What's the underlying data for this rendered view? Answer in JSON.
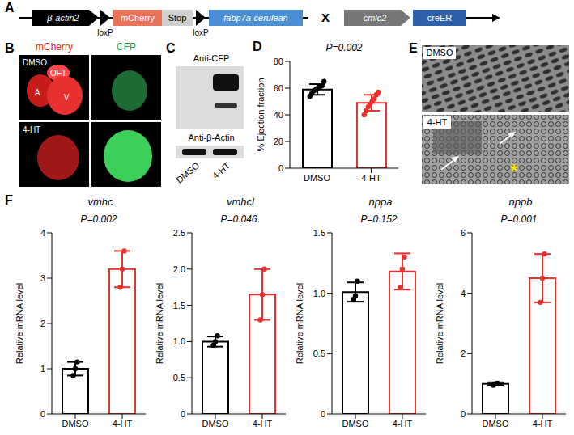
{
  "panel_letters": [
    "A",
    "B",
    "C",
    "D",
    "E",
    "F"
  ],
  "panel_a": {
    "promoter": "β-actin2",
    "lox_labels": [
      "loxP",
      "loxP"
    ],
    "reporter": "mCherry",
    "stop": "Stop",
    "gene": "fabp7a-cerulean",
    "cross": "X",
    "driver": "cmlc2",
    "cre": "creER"
  },
  "panel_b": {
    "channels": [
      "mCherry",
      "CFP"
    ],
    "conditions": [
      "DMSO",
      "4-HT"
    ],
    "regions": [
      "OFT",
      "A",
      "V"
    ]
  },
  "panel_c": {
    "antibodies": [
      "Anti-CFP",
      "Anti-β-Actin"
    ],
    "lanes": [
      "DMSO",
      "4-HT"
    ]
  },
  "panel_e": {
    "conditions": [
      "DMSO",
      "4-HT"
    ],
    "asterisk": "*"
  },
  "chart_data": [
    {
      "type": "bar",
      "ylabel": "% Ejection fraction",
      "annotation": "P=0.002",
      "categories": [
        "DMSO",
        "4-HT"
      ],
      "values": [
        59,
        49
      ],
      "errors": [
        4,
        6
      ],
      "points": [
        [
          54,
          56,
          58,
          59,
          60,
          61,
          62,
          65
        ],
        [
          40,
          43,
          46,
          48,
          50,
          52,
          55,
          57
        ]
      ],
      "colors": [
        "#000000",
        "#e8312c"
      ],
      "ylim": [
        0,
        80
      ],
      "yticks": [
        0,
        20,
        40,
        60,
        80
      ]
    },
    {
      "type": "bar",
      "title": "vmhc",
      "ylabel": "Relative mRNA level",
      "annotation": "P=0.002",
      "categories": [
        "DMSO",
        "4-HT"
      ],
      "values": [
        1.0,
        3.2
      ],
      "errors": [
        0.15,
        0.4
      ],
      "points": [
        [
          0.85,
          1.0,
          1.15
        ],
        [
          2.8,
          3.2,
          3.6
        ]
      ],
      "colors": [
        "#000000",
        "#e8312c"
      ],
      "ylim": [
        0,
        4
      ],
      "yticks": [
        0,
        1,
        2,
        3,
        4
      ]
    },
    {
      "type": "bar",
      "title": "vmhcl",
      "ylabel": "Relative mRNA level",
      "annotation": "P=0.046",
      "categories": [
        "DMSO",
        "4-HT"
      ],
      "values": [
        1.0,
        1.65
      ],
      "errors": [
        0.07,
        0.35
      ],
      "points": [
        [
          0.95,
          1.0,
          1.08
        ],
        [
          1.3,
          1.65,
          2.0
        ]
      ],
      "colors": [
        "#000000",
        "#e8312c"
      ],
      "ylim": [
        0,
        2.5
      ],
      "yticks": [
        0,
        {
          "value": 0.5,
          "label": "0.5"
        },
        {
          "value": 1,
          "label": "1.0"
        },
        {
          "value": 1.5,
          "label": "1.5"
        },
        {
          "value": 2,
          "label": "2.0"
        },
        {
          "value": 2.5,
          "label": "2.5"
        }
      ]
    },
    {
      "type": "bar",
      "title": "nppa",
      "ylabel": "Relative mRNA level",
      "annotation": "P=0.152",
      "categories": [
        "DMSO",
        "4-HT"
      ],
      "values": [
        1.01,
        1.18
      ],
      "errors": [
        0.08,
        0.15
      ],
      "points": [
        [
          0.95,
          0.98,
          1.1
        ],
        [
          1.05,
          1.2,
          1.3
        ]
      ],
      "colors": [
        "#000000",
        "#e8312c"
      ],
      "ylim": [
        0,
        1.5
      ],
      "yticks": [
        0,
        {
          "value": 0.5,
          "label": "0.5"
        },
        {
          "value": 1,
          "label": "1.0"
        },
        {
          "value": 1.5,
          "label": "1.5"
        }
      ]
    },
    {
      "type": "bar",
      "title": "nppb",
      "ylabel": "Relative mRNA level",
      "annotation": "P=0.001",
      "categories": [
        "DMSO",
        "4-HT"
      ],
      "values": [
        1.0,
        4.5
      ],
      "errors": [
        0.05,
        0.8
      ],
      "points": [
        [
          0.95,
          1.0,
          1.02
        ],
        [
          3.7,
          4.5,
          5.3
        ]
      ],
      "colors": [
        "#000000",
        "#e8312c"
      ],
      "ylim": [
        0,
        6
      ],
      "yticks": [
        0,
        2,
        4,
        6
      ]
    }
  ]
}
